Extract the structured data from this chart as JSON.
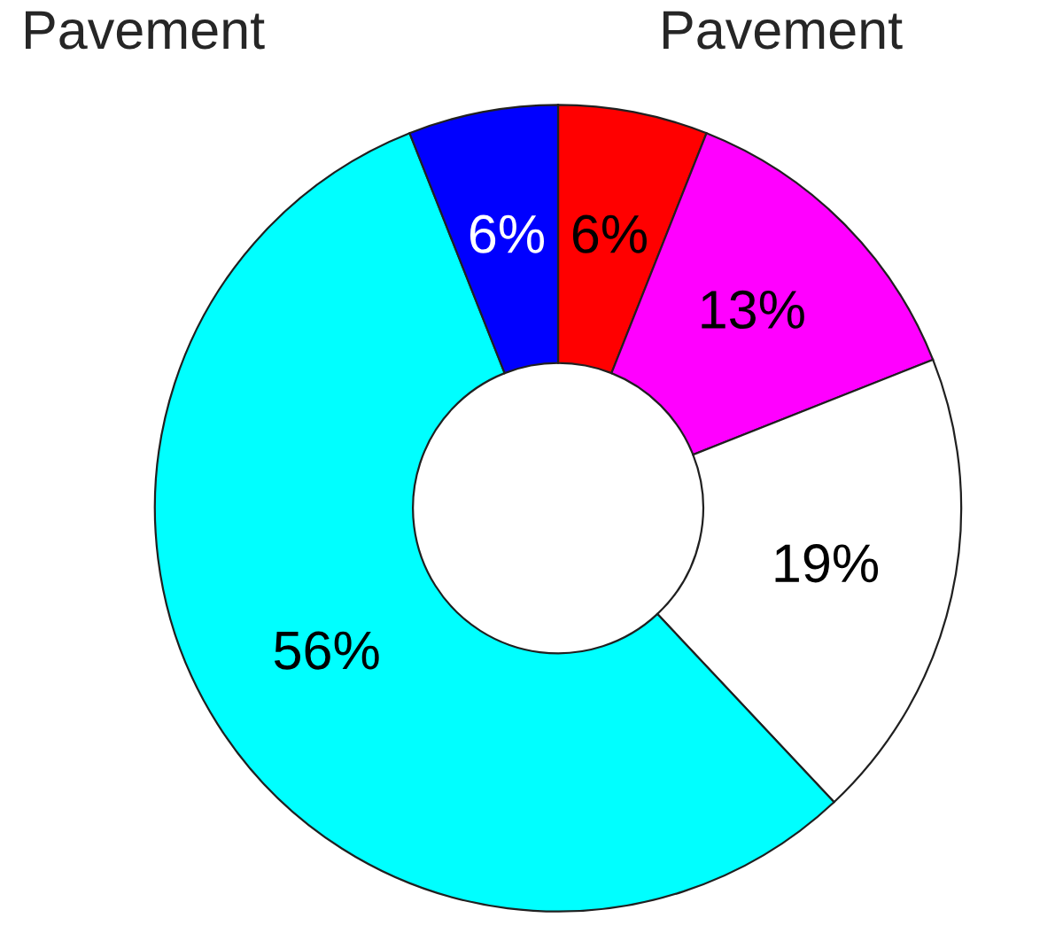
{
  "chart_data": {
    "type": "donut",
    "categories": [
      null,
      null,
      null,
      null,
      null
    ],
    "values": [
      6,
      13,
      19,
      56,
      6
    ],
    "colors": [
      "#ff0000",
      "#ff00ff",
      "#ffffff",
      "#00ffff",
      "#0000ff"
    ],
    "value_labels": [
      "6%",
      "13%",
      "19%",
      "56%",
      "6%"
    ],
    "annotations": [
      "Pavement",
      "Pavement"
    ],
    "legend": false
  }
}
